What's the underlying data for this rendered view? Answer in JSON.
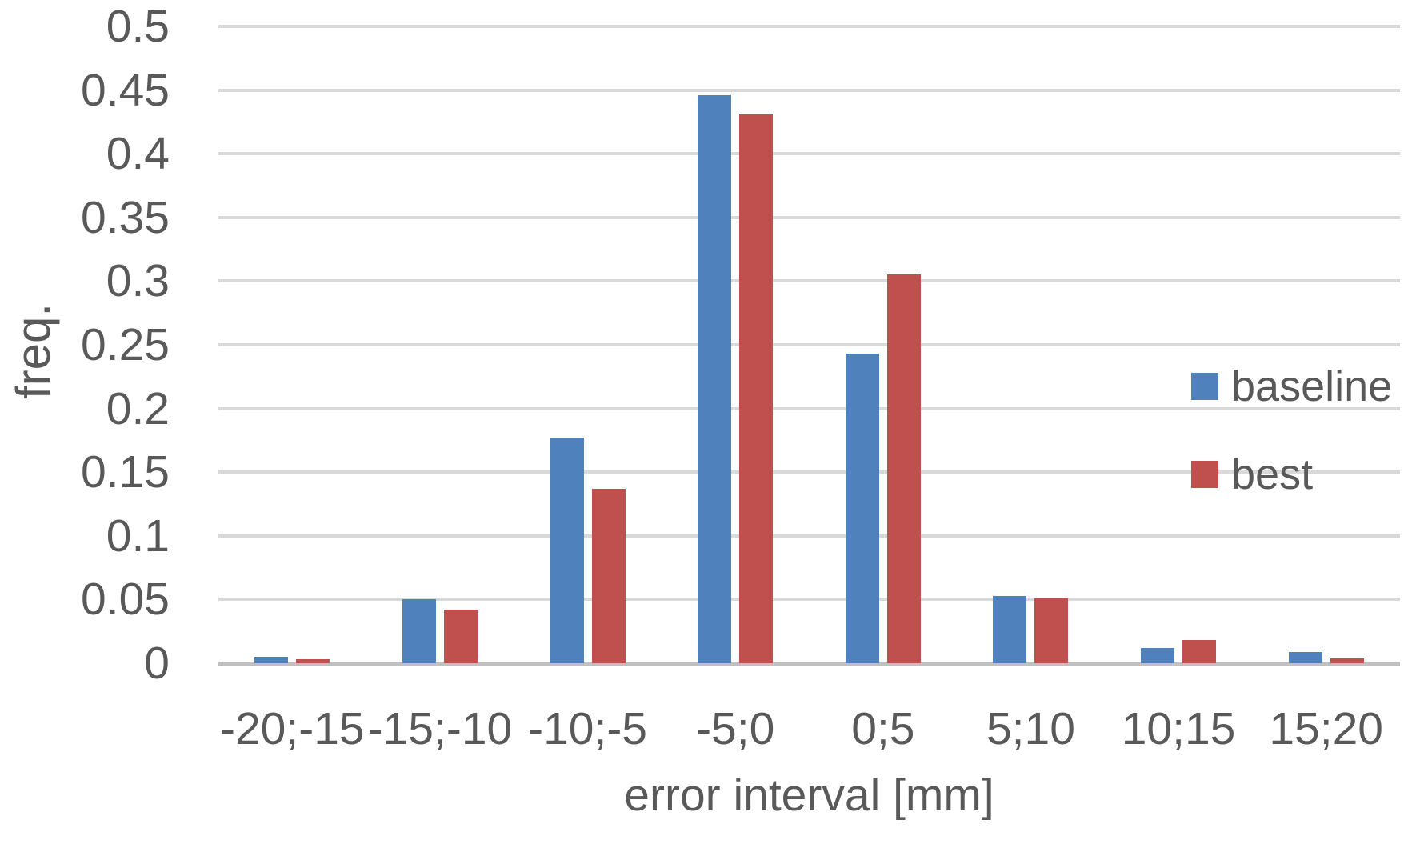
{
  "chart_data": {
    "type": "bar",
    "categories": [
      "-20;-15",
      "-15;-10",
      "-10;-5",
      "-5;0",
      "0;5",
      "5;10",
      "10;15",
      "15;20"
    ],
    "series": [
      {
        "name": "baseline",
        "color": "#4f81bd",
        "values": [
          0.005,
          0.05,
          0.177,
          0.446,
          0.243,
          0.053,
          0.012,
          0.009
        ]
      },
      {
        "name": "best",
        "color": "#c0504d",
        "values": [
          0.003,
          0.042,
          0.137,
          0.431,
          0.305,
          0.051,
          0.018,
          0.004
        ]
      }
    ],
    "title": "",
    "xlabel": "error interval [mm]",
    "ylabel": "freq.",
    "ylim": [
      0,
      0.5
    ],
    "ytick_step": 0.05,
    "ytick_labels": [
      "0.5",
      "0.45",
      "0.4",
      "0.35",
      "0.3",
      "0.25",
      "0.2",
      "0.15",
      "0.1",
      "0.05",
      "0"
    ],
    "grid": true,
    "legend_position": "right",
    "legend_labels": [
      "baseline",
      "best"
    ]
  },
  "colors": {
    "gridline": "#d9d9d9",
    "axis_line": "#c0c0c0",
    "text": "#595959",
    "background": "#ffffff"
  }
}
